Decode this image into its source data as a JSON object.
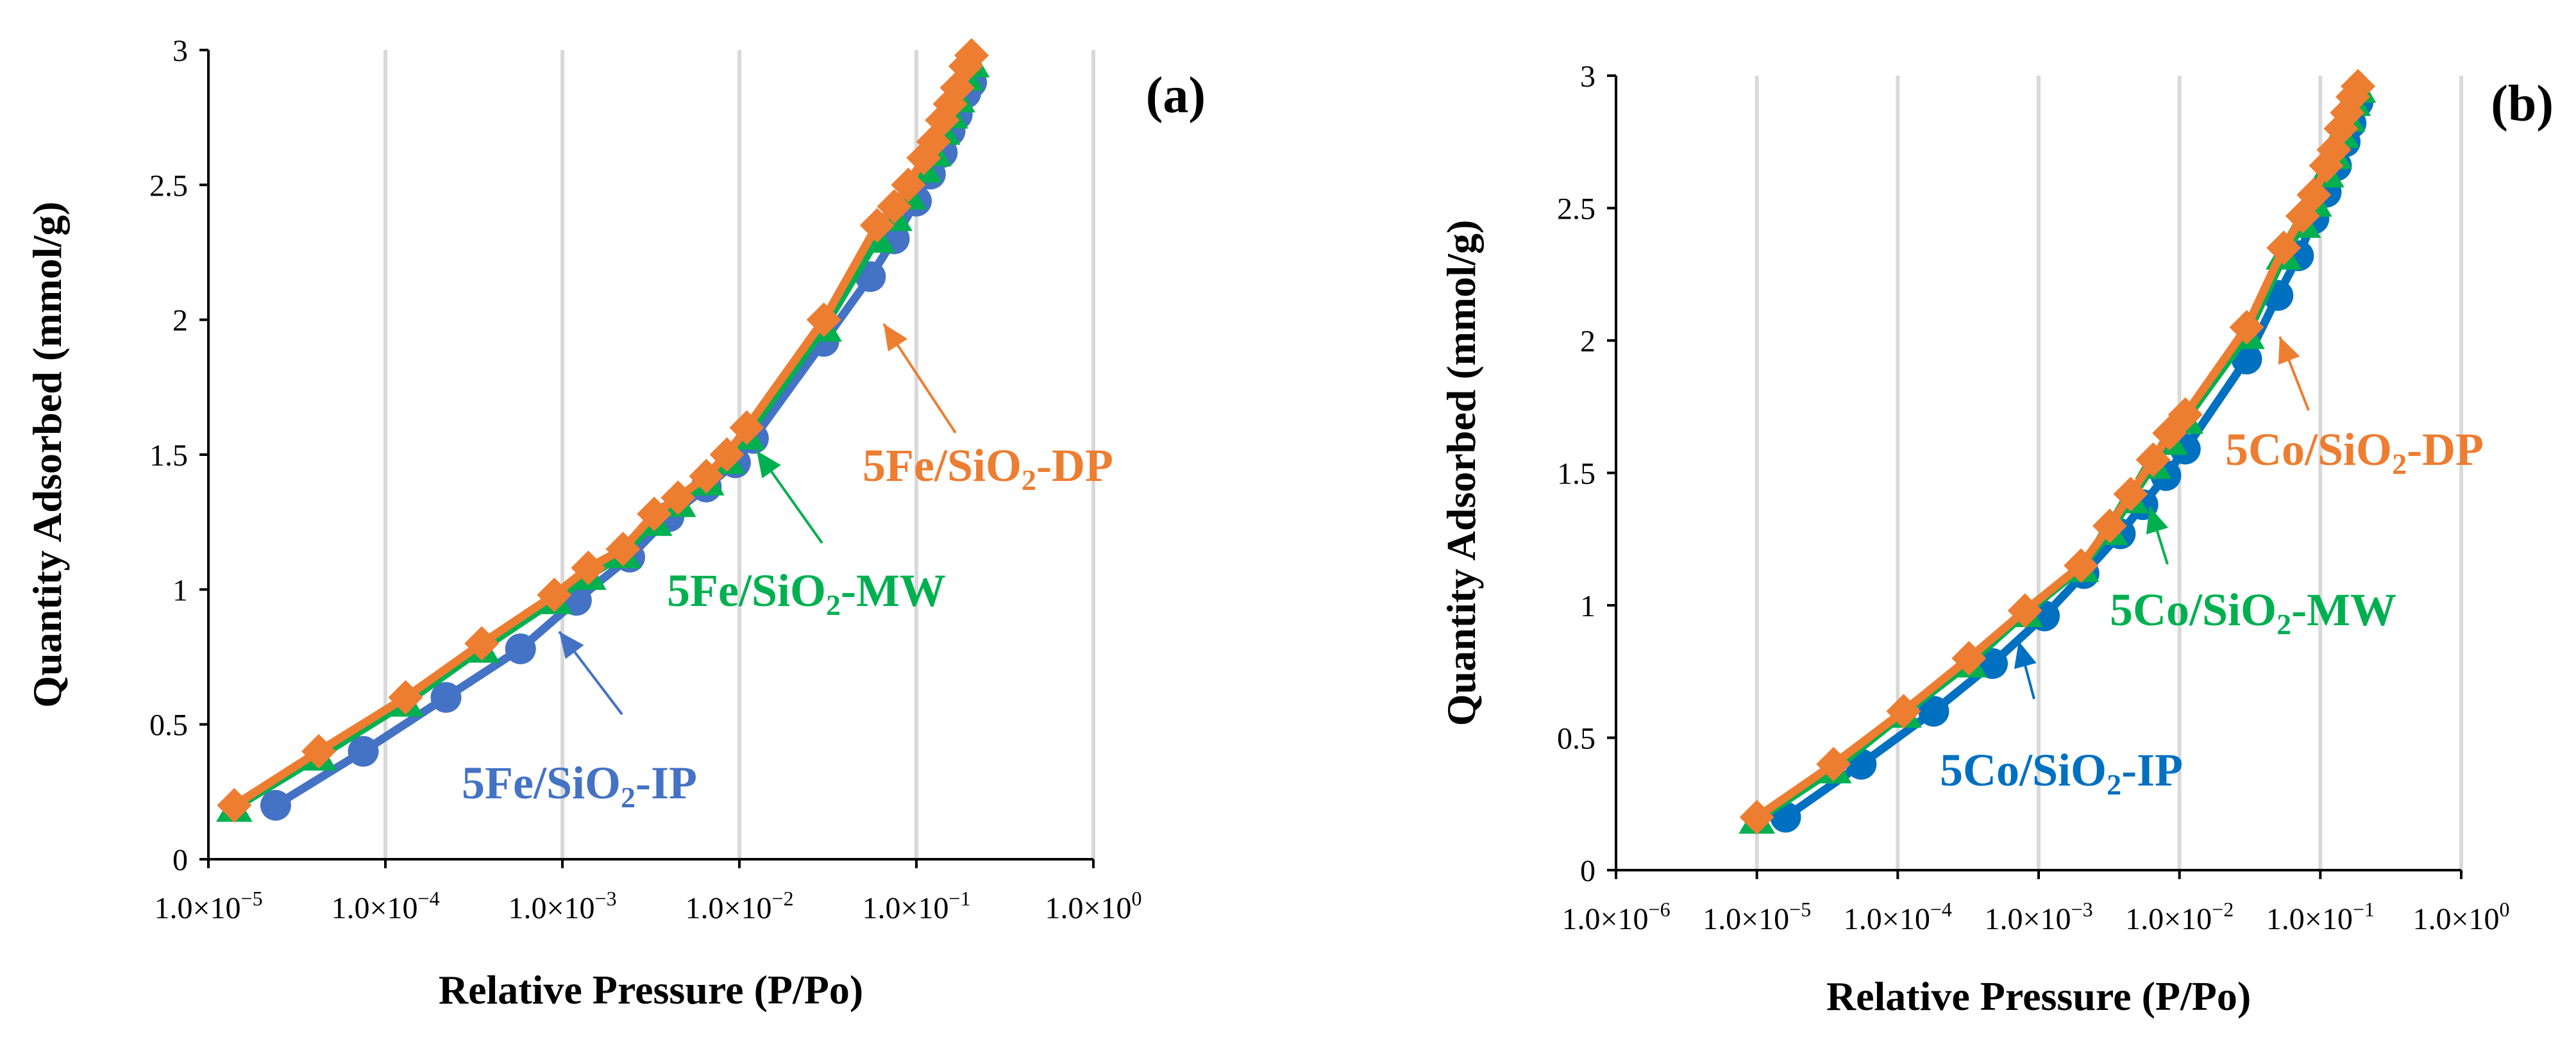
{
  "chart_data": [
    {
      "type": "line",
      "panel_label": "(a)",
      "xscale": "log",
      "xlim_exp": [
        -5,
        0
      ],
      "ylim": [
        0,
        3
      ],
      "yticks": [
        "0",
        "0.5",
        "1",
        "1.5",
        "2",
        "2.5",
        "3"
      ],
      "xticks": [
        {
          "base": "1.0×10",
          "exp": "−5"
        },
        {
          "base": "1.0×10",
          "exp": "−4"
        },
        {
          "base": "1.0×10",
          "exp": "−3"
        },
        {
          "base": "1.0×10",
          "exp": "−2"
        },
        {
          "base": "1.0×10",
          "exp": "−1"
        },
        {
          "base": "1.0×10",
          "exp": "0"
        }
      ],
      "xlabel": "Relative Pressure (P/Po)",
      "ylabel": "Quantity Adsorbed (mmol/g)",
      "grid": "vertical",
      "series": [
        {
          "name": "5Fe/SiO2-DP",
          "label_main": "5Fe/SiO",
          "label_sub": "2",
          "label_end": "-DP",
          "color": "#ED7D31",
          "marker": "diamond",
          "x": [
            1.4e-05,
            4.2e-05,
            0.00013,
            0.00035,
            0.0009,
            0.0014,
            0.0022,
            0.0033,
            0.0045,
            0.0065,
            0.0085,
            0.011,
            0.03,
            0.06,
            0.075,
            0.09,
            0.11,
            0.125,
            0.14,
            0.155,
            0.17,
            0.19,
            0.205
          ],
          "y": [
            0.2,
            0.4,
            0.6,
            0.8,
            0.98,
            1.08,
            1.15,
            1.28,
            1.34,
            1.42,
            1.5,
            1.6,
            2.0,
            2.35,
            2.42,
            2.5,
            2.6,
            2.66,
            2.74,
            2.8,
            2.86,
            2.94,
            2.98
          ]
        },
        {
          "name": "5Fe/SiO2-MW",
          "label_main": "5Fe/SiO",
          "label_sub": "2",
          "label_end": "-MW",
          "color": "#00B050",
          "marker": "triangle",
          "x": [
            1.4e-05,
            4.2e-05,
            0.00013,
            0.00035,
            0.0009,
            0.0014,
            0.0022,
            0.0033,
            0.0045,
            0.0065,
            0.0085,
            0.011,
            0.03,
            0.06,
            0.075,
            0.09,
            0.11,
            0.125,
            0.14,
            0.155,
            0.17,
            0.19,
            0.205
          ],
          "y": [
            0.19,
            0.38,
            0.58,
            0.78,
            0.96,
            1.05,
            1.13,
            1.25,
            1.32,
            1.4,
            1.48,
            1.57,
            1.97,
            2.3,
            2.38,
            2.46,
            2.56,
            2.62,
            2.7,
            2.76,
            2.82,
            2.9,
            2.95
          ]
        },
        {
          "name": "5Fe/SiO2-IP",
          "label_main": "5Fe/SiO",
          "label_sub": "2",
          "label_end": "-IP",
          "color": "#4472C4",
          "marker": "circle",
          "x": [
            2.4e-05,
            7.5e-05,
            0.00022,
            0.00058,
            0.0012,
            0.0024,
            0.004,
            0.0065,
            0.0095,
            0.012,
            0.03,
            0.055,
            0.075,
            0.1,
            0.12,
            0.14,
            0.155,
            0.17,
            0.19,
            0.205
          ],
          "y": [
            0.2,
            0.4,
            0.6,
            0.78,
            0.96,
            1.12,
            1.27,
            1.38,
            1.47,
            1.56,
            1.92,
            2.16,
            2.3,
            2.44,
            2.54,
            2.62,
            2.7,
            2.76,
            2.84,
            2.88
          ]
        }
      ]
    },
    {
      "type": "line",
      "panel_label": "(b)",
      "xscale": "log",
      "xlim_exp": [
        -6,
        0
      ],
      "ylim": [
        0,
        3
      ],
      "yticks": [
        "0",
        "0.5",
        "1",
        "1.5",
        "2",
        "2.5",
        "3"
      ],
      "xticks": [
        {
          "base": "1.0×10",
          "exp": "−6"
        },
        {
          "base": "1.0×10",
          "exp": "−5"
        },
        {
          "base": "1.0×10",
          "exp": "−4"
        },
        {
          "base": "1.0×10",
          "exp": "−3"
        },
        {
          "base": "1.0×10",
          "exp": "−2"
        },
        {
          "base": "1.0×10",
          "exp": "−1"
        },
        {
          "base": "1.0×10",
          "exp": "0"
        }
      ],
      "xlabel": "Relative Pressure (P/Po)",
      "ylabel": "Quantity Adsorbed (mmol/g)",
      "grid": "vertical",
      "series": [
        {
          "name": "5Co/SiO2-DP",
          "label_main": "5Co/SiO",
          "label_sub": "2",
          "label_end": "-DP",
          "color": "#ED7D31",
          "marker": "diamond",
          "x": [
            1e-05,
            3.5e-05,
            0.00011,
            0.00032,
            0.0008,
            0.002,
            0.0032,
            0.0045,
            0.0065,
            0.0085,
            0.011,
            0.03,
            0.055,
            0.075,
            0.09,
            0.11,
            0.125,
            0.14,
            0.155,
            0.17,
            0.185
          ],
          "y": [
            0.2,
            0.4,
            0.6,
            0.8,
            0.98,
            1.15,
            1.3,
            1.42,
            1.55,
            1.65,
            1.72,
            2.05,
            2.35,
            2.47,
            2.55,
            2.66,
            2.72,
            2.8,
            2.86,
            2.92,
            2.96
          ]
        },
        {
          "name": "5Co/SiO2-MW",
          "label_main": "5Co/SiO",
          "label_sub": "2",
          "label_end": "-MW",
          "color": "#00B050",
          "marker": "triangle",
          "x": [
            1e-05,
            3.5e-05,
            0.00011,
            0.00032,
            0.0008,
            0.002,
            0.0032,
            0.0045,
            0.0065,
            0.0085,
            0.011,
            0.03,
            0.055,
            0.075,
            0.09,
            0.11,
            0.125,
            0.14,
            0.155,
            0.17,
            0.185
          ],
          "y": [
            0.19,
            0.38,
            0.59,
            0.78,
            0.97,
            1.14,
            1.28,
            1.4,
            1.53,
            1.62,
            1.7,
            2.02,
            2.32,
            2.44,
            2.52,
            2.63,
            2.7,
            2.78,
            2.84,
            2.9,
            2.95
          ]
        },
        {
          "name": "5Co/SiO2-IP",
          "label_main": "5Co/SiO",
          "label_sub": "2",
          "label_end": "-IP",
          "color": "#0070C0",
          "marker": "circle",
          "x": [
            1.6e-05,
            5.5e-05,
            0.00018,
            0.00047,
            0.0011,
            0.0021,
            0.0038,
            0.0055,
            0.008,
            0.011,
            0.03,
            0.05,
            0.07,
            0.09,
            0.11,
            0.13,
            0.15,
            0.165,
            0.185
          ],
          "y": [
            0.2,
            0.4,
            0.6,
            0.78,
            0.96,
            1.12,
            1.27,
            1.38,
            1.49,
            1.59,
            1.93,
            2.17,
            2.32,
            2.46,
            2.56,
            2.66,
            2.75,
            2.82,
            2.9
          ]
        }
      ]
    }
  ]
}
